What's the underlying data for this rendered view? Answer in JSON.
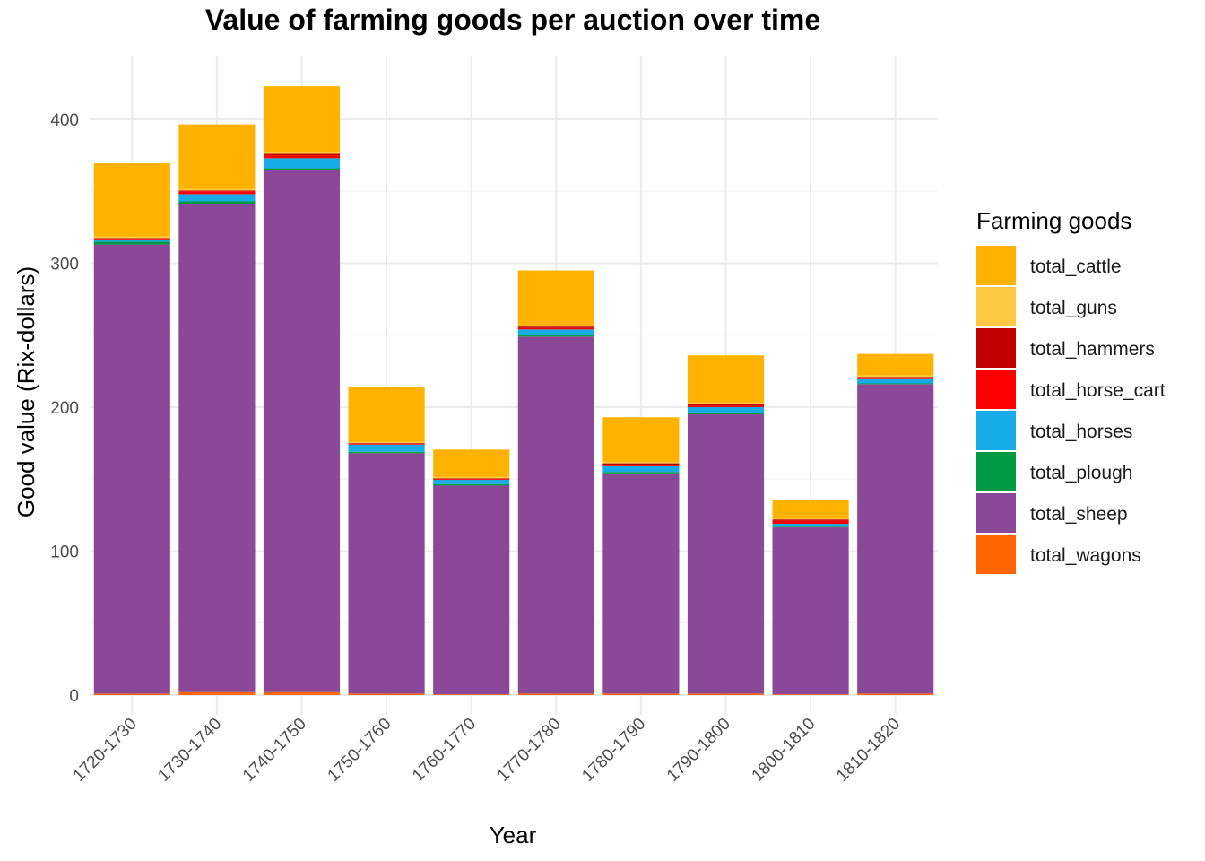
{
  "chart_data": {
    "type": "bar",
    "stacked": true,
    "title": "Value of farming goods per auction over time",
    "xlabel": "Year",
    "ylabel": "Good value (Rix-dollars)",
    "ylim": [
      0,
      440
    ],
    "yticks": [
      0,
      100,
      200,
      300,
      400
    ],
    "grid": true,
    "legend_title": "Farming goods",
    "legend_position": "right",
    "categories": [
      "1720-1730",
      "1730-1740",
      "1740-1750",
      "1750-1760",
      "1760-1770",
      "1770-1780",
      "1780-1790",
      "1790-1800",
      "1800-1810",
      "1810-1820"
    ],
    "series": [
      {
        "name": "total_wagons",
        "color": "#FF6600",
        "values": [
          1,
          2,
          2,
          1,
          0.5,
          1,
          1,
          1,
          0.5,
          1
        ]
      },
      {
        "name": "total_sheep",
        "color": "#8B4898",
        "values": [
          312,
          339,
          363,
          167,
          145,
          248,
          153,
          194,
          116,
          215
        ]
      },
      {
        "name": "total_plough",
        "color": "#009A44",
        "values": [
          2,
          2,
          1,
          1,
          1,
          1,
          1,
          1,
          0.5,
          0.5
        ]
      },
      {
        "name": "total_horses",
        "color": "#17ACE8",
        "values": [
          1,
          5,
          7,
          5,
          3,
          4,
          4,
          4,
          2,
          3
        ]
      },
      {
        "name": "total_horse_cart",
        "color": "#FF0000",
        "values": [
          1,
          2,
          2,
          0.5,
          0.5,
          1,
          1,
          1,
          2,
          1
        ]
      },
      {
        "name": "total_hammers",
        "color": "#C00000",
        "values": [
          0.5,
          0.5,
          1,
          0.5,
          0.5,
          1,
          1,
          1,
          1,
          0.5
        ]
      },
      {
        "name": "total_guns",
        "color": "#FFC842",
        "values": [
          1,
          1,
          1,
          1,
          1,
          1,
          1,
          1,
          0.5,
          1
        ]
      },
      {
        "name": "total_cattle",
        "color": "#FFB300",
        "values": [
          51,
          45,
          46,
          38,
          19,
          38,
          31,
          33,
          13,
          15
        ]
      }
    ],
    "legend_order": [
      "total_cattle",
      "total_guns",
      "total_hammers",
      "total_horse_cart",
      "total_horses",
      "total_plough",
      "total_sheep",
      "total_wagons"
    ]
  }
}
